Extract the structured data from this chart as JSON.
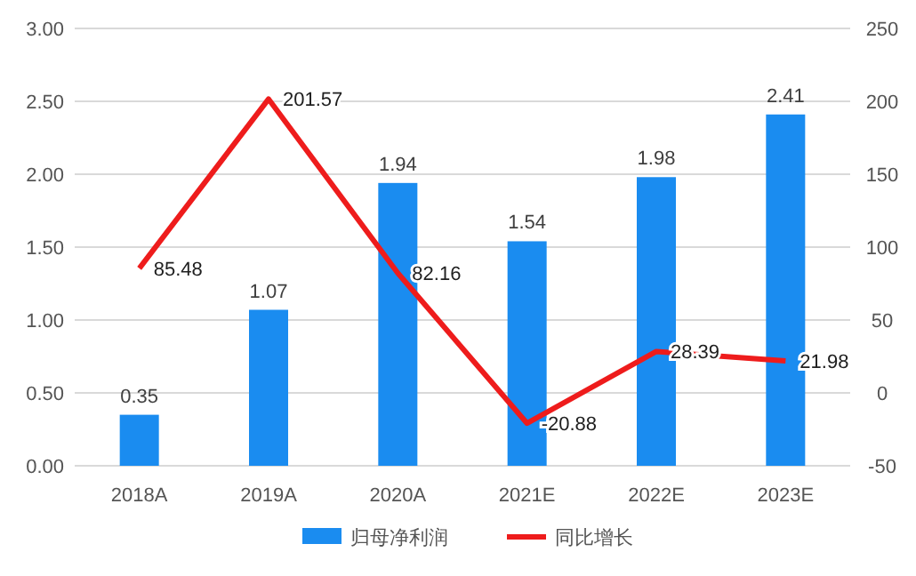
{
  "chart_data": {
    "type": "bar",
    "categories": [
      "2018A",
      "2019A",
      "2020A",
      "2021E",
      "2022E",
      "2023E"
    ],
    "series": [
      {
        "name": "归母净利润",
        "color": "#1a8cf0",
        "values": [
          0.35,
          1.07,
          1.94,
          1.54,
          1.98,
          2.41
        ]
      },
      {
        "name": "同比增长",
        "type": "line",
        "axis": "y2",
        "color": "#ee1c1c",
        "values": [
          85.48,
          201.57,
          82.16,
          -20.88,
          28.39,
          21.98
        ]
      }
    ],
    "ylim": [
      0,
      3
    ],
    "yticks": [
      {
        "value": 0,
        "label": "0.00"
      },
      {
        "value": 0.5,
        "label": "0.50"
      },
      {
        "value": 1,
        "label": "1.00"
      },
      {
        "value": 1.5,
        "label": "1.50"
      },
      {
        "value": 2,
        "label": "2.00"
      },
      {
        "value": 2.5,
        "label": "2.50"
      },
      {
        "value": 3,
        "label": "3.00"
      }
    ],
    "y2lim": [
      -50,
      250
    ],
    "y2ticks": [
      -50,
      0,
      50,
      100,
      150,
      200,
      250
    ],
    "grid": "y",
    "legend": "bottom",
    "data_labels": true
  }
}
